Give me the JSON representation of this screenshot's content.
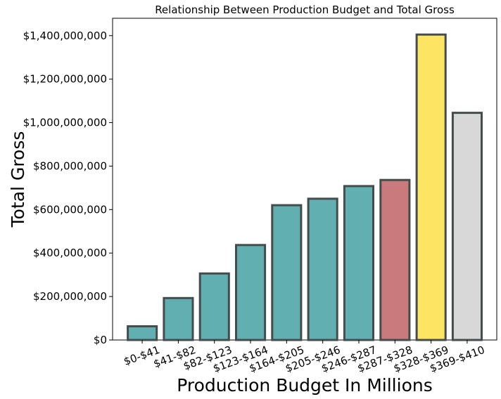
{
  "chart_data": {
    "type": "bar",
    "title": "Relationship Between Production Budget and Total Gross",
    "xlabel": "Production Budget In Millions",
    "ylabel": "Total Gross",
    "categories": [
      "$0-$41",
      "$41-$82",
      "$82-$123",
      "$123-$164",
      "$164-$205",
      "$205-$246",
      "$246-$287",
      "$287-$328",
      "$328-$369",
      "$369-$410"
    ],
    "values": [
      63000000,
      193000000,
      306000000,
      437000000,
      620000000,
      650000000,
      708000000,
      736000000,
      1405000000,
      1045000000
    ],
    "bar_colors": [
      "#62afb1",
      "#62afb1",
      "#62afb1",
      "#62afb1",
      "#62afb1",
      "#62afb1",
      "#62afb1",
      "#c97a7c",
      "#fee463",
      "#d8d8d8"
    ],
    "bar_edge_color": "#444c4c",
    "ylim": [
      0,
      1480000000
    ],
    "yticks": [
      0,
      200000000,
      400000000,
      600000000,
      800000000,
      1000000000,
      1200000000,
      1400000000
    ],
    "ytick_labels": [
      "$0",
      "$200,000,000",
      "$400,000,000",
      "$600,000,000",
      "$800,000,000",
      "$1,000,000,000",
      "$1,200,000,000",
      "$1,400,000,000"
    ],
    "grid": false,
    "legend": "none"
  }
}
